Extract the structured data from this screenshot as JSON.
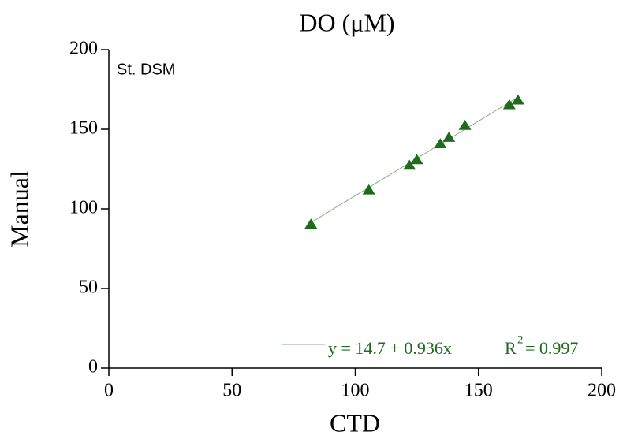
{
  "chart_data": {
    "type": "scatter",
    "title": "DO (μM)",
    "xlabel": "CTD",
    "ylabel": "Manual",
    "annotation": "St. DSM",
    "equation": {
      "text": "y = 14.7 + 0.936x",
      "r_label": "R",
      "r_exponent": "2",
      "r_value": "= 0.997"
    },
    "series": [
      {
        "name": "DO",
        "color": "#1e6b1e",
        "x": [
          82,
          105.5,
          122,
          125,
          134.5,
          138,
          144.5,
          162.5,
          166
        ],
        "values": [
          90,
          111.5,
          127,
          130.5,
          140.5,
          144.5,
          152,
          165,
          168
        ]
      }
    ],
    "fit_line": {
      "color": "#7fae7f",
      "x": [
        82,
        166
      ],
      "values": [
        91.45,
        170.1
      ]
    },
    "xlim": [
      0,
      200
    ],
    "ylim": [
      0,
      200
    ],
    "xticks": [
      0,
      50,
      100,
      150,
      200
    ],
    "yticks": [
      0,
      50,
      100,
      150,
      200
    ]
  }
}
